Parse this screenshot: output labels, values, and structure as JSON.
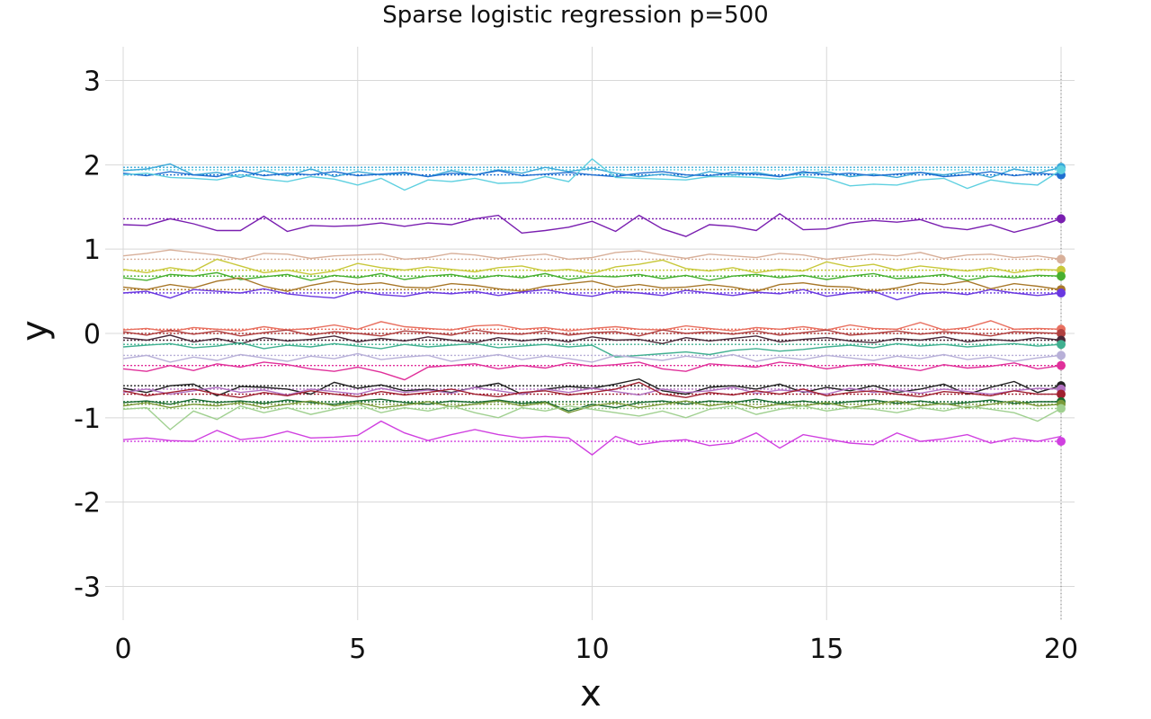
{
  "chart_data": {
    "type": "line",
    "title": "Sparse logistic regression p=500",
    "xlabel": "x",
    "ylabel": "y",
    "xlim": [
      0,
      20
    ],
    "ylim": [
      -3.4,
      3.4
    ],
    "x_ticks": [
      0,
      5,
      10,
      15,
      20
    ],
    "x_tick_labels": [
      "0",
      "5",
      "10",
      "15",
      "20"
    ],
    "y_ticks": [
      3,
      2,
      1,
      0,
      -1,
      -2,
      -3
    ],
    "y_tick_labels": [
      "3",
      "2",
      "1",
      "0",
      "-1",
      "-2",
      "-3"
    ],
    "grid": true,
    "legend": "none",
    "x": [
      0,
      0.5,
      1,
      1.5,
      2,
      2.5,
      3,
      3.5,
      4,
      4.5,
      5,
      5.5,
      6,
      6.5,
      7,
      7.5,
      8,
      8.5,
      9,
      9.5,
      10,
      10.5,
      11,
      11.5,
      12,
      12.5,
      13,
      13.5,
      14,
      14.5,
      15,
      15.5,
      16,
      16.5,
      17,
      17.5,
      18,
      18.5,
      19,
      19.5,
      20
    ],
    "series": [
      {
        "color": "#3aa8d8",
        "target": 1.97,
        "values": [
          1.93,
          1.95,
          2.01,
          1.88,
          1.91,
          1.85,
          1.93,
          1.87,
          1.95,
          1.86,
          1.92,
          1.88,
          1.9,
          1.86,
          1.93,
          1.88,
          1.94,
          1.9,
          1.97,
          1.92,
          1.96,
          1.9,
          1.86,
          1.89,
          1.85,
          1.92,
          1.88,
          1.91,
          1.86,
          1.9,
          1.92,
          1.86,
          1.89,
          1.85,
          1.91,
          1.88,
          1.92,
          1.85,
          1.95,
          1.9,
          1.97
        ]
      },
      {
        "color": "#1f6fd0",
        "target": 1.88,
        "values": [
          1.9,
          1.87,
          1.92,
          1.88,
          1.86,
          1.93,
          1.87,
          1.9,
          1.88,
          1.92,
          1.87,
          1.89,
          1.91,
          1.86,
          1.9,
          1.88,
          1.93,
          1.87,
          1.89,
          1.91,
          1.88,
          1.86,
          1.9,
          1.92,
          1.88,
          1.87,
          1.91,
          1.89,
          1.86,
          1.92,
          1.88,
          1.9,
          1.87,
          1.89,
          1.91,
          1.86,
          1.88,
          1.92,
          1.87,
          1.9,
          1.88
        ]
      },
      {
        "color": "#5fd0e0",
        "target": 1.94,
        "values": [
          1.88,
          1.9,
          1.85,
          1.84,
          1.82,
          1.88,
          1.83,
          1.8,
          1.86,
          1.83,
          1.76,
          1.84,
          1.7,
          1.82,
          1.8,
          1.84,
          1.78,
          1.79,
          1.86,
          1.8,
          2.07,
          1.85,
          1.84,
          1.83,
          1.82,
          1.86,
          1.86,
          1.85,
          1.83,
          1.86,
          1.84,
          1.75,
          1.77,
          1.76,
          1.82,
          1.84,
          1.72,
          1.82,
          1.78,
          1.76,
          1.94
        ]
      },
      {
        "color": "#7a1fb0",
        "target": 1.36,
        "values": [
          1.29,
          1.28,
          1.36,
          1.3,
          1.22,
          1.22,
          1.39,
          1.21,
          1.28,
          1.27,
          1.28,
          1.31,
          1.27,
          1.31,
          1.29,
          1.36,
          1.4,
          1.19,
          1.22,
          1.26,
          1.33,
          1.21,
          1.4,
          1.24,
          1.15,
          1.29,
          1.27,
          1.22,
          1.42,
          1.23,
          1.24,
          1.31,
          1.34,
          1.32,
          1.35,
          1.26,
          1.23,
          1.29,
          1.2,
          1.27,
          1.36
        ]
      },
      {
        "color": "#d8b09a",
        "target": 0.88,
        "values": [
          0.92,
          0.95,
          0.99,
          0.96,
          0.93,
          0.88,
          0.95,
          0.94,
          0.89,
          0.92,
          0.93,
          0.94,
          0.88,
          0.9,
          0.95,
          0.93,
          0.89,
          0.92,
          0.94,
          0.88,
          0.9,
          0.96,
          0.98,
          0.93,
          0.89,
          0.94,
          0.92,
          0.9,
          0.95,
          0.93,
          0.88,
          0.91,
          0.94,
          0.92,
          0.96,
          0.89,
          0.93,
          0.94,
          0.9,
          0.92,
          0.88
        ]
      },
      {
        "color": "#c8c83a",
        "target": 0.75,
        "values": [
          0.76,
          0.72,
          0.78,
          0.74,
          0.88,
          0.8,
          0.72,
          0.75,
          0.7,
          0.74,
          0.83,
          0.78,
          0.75,
          0.79,
          0.76,
          0.73,
          0.78,
          0.8,
          0.74,
          0.76,
          0.71,
          0.79,
          0.82,
          0.87,
          0.77,
          0.74,
          0.78,
          0.72,
          0.76,
          0.74,
          0.85,
          0.79,
          0.82,
          0.75,
          0.8,
          0.77,
          0.74,
          0.78,
          0.72,
          0.76,
          0.75
        ]
      },
      {
        "color": "#48b030",
        "target": 0.68,
        "values": [
          0.66,
          0.63,
          0.7,
          0.68,
          0.72,
          0.64,
          0.67,
          0.7,
          0.63,
          0.69,
          0.66,
          0.71,
          0.64,
          0.68,
          0.7,
          0.65,
          0.69,
          0.66,
          0.71,
          0.64,
          0.68,
          0.67,
          0.7,
          0.65,
          0.69,
          0.63,
          0.68,
          0.7,
          0.66,
          0.69,
          0.64,
          0.68,
          0.71,
          0.65,
          0.67,
          0.7,
          0.63,
          0.68,
          0.66,
          0.69,
          0.68
        ]
      },
      {
        "color": "#a8782a",
        "target": 0.52,
        "values": [
          0.55,
          0.52,
          0.58,
          0.54,
          0.62,
          0.66,
          0.56,
          0.5,
          0.57,
          0.62,
          0.58,
          0.6,
          0.55,
          0.54,
          0.59,
          0.57,
          0.53,
          0.5,
          0.56,
          0.59,
          0.62,
          0.55,
          0.58,
          0.54,
          0.55,
          0.58,
          0.55,
          0.5,
          0.58,
          0.6,
          0.56,
          0.55,
          0.5,
          0.54,
          0.6,
          0.58,
          0.62,
          0.53,
          0.59,
          0.56,
          0.52
        ]
      },
      {
        "color": "#6a38e0",
        "target": 0.48,
        "values": [
          0.48,
          0.5,
          0.42,
          0.52,
          0.5,
          0.48,
          0.53,
          0.47,
          0.44,
          0.42,
          0.5,
          0.46,
          0.44,
          0.49,
          0.47,
          0.5,
          0.45,
          0.49,
          0.52,
          0.47,
          0.44,
          0.5,
          0.48,
          0.45,
          0.51,
          0.48,
          0.45,
          0.49,
          0.47,
          0.52,
          0.44,
          0.48,
          0.5,
          0.4,
          0.47,
          0.49,
          0.46,
          0.52,
          0.48,
          0.45,
          0.48
        ]
      },
      {
        "color": "#e87060",
        "target": 0.05,
        "values": [
          0.04,
          0.06,
          0.02,
          0.07,
          0.05,
          0.03,
          0.08,
          0.04,
          0.06,
          0.1,
          0.05,
          0.14,
          0.08,
          0.06,
          0.04,
          0.09,
          0.1,
          0.05,
          0.07,
          0.03,
          0.06,
          0.08,
          0.05,
          0.04,
          0.09,
          0.06,
          0.03,
          0.07,
          0.05,
          0.08,
          0.04,
          0.1,
          0.06,
          0.05,
          0.13,
          0.04,
          0.07,
          0.15,
          0.05,
          0.06,
          0.05
        ]
      },
      {
        "color": "#b04040",
        "target": 0.0,
        "values": [
          0.02,
          -0.02,
          0.04,
          -0.01,
          0.03,
          -0.03,
          0.01,
          0.04,
          -0.02,
          0.02,
          0.0,
          -0.03,
          0.03,
          0.01,
          -0.02,
          0.04,
          0.0,
          -0.01,
          0.03,
          -0.02,
          0.01,
          0.02,
          -0.03,
          0.04,
          0.0,
          0.02,
          -0.01,
          0.03,
          -0.02,
          0.01,
          0.04,
          -0.02,
          0.0,
          0.03,
          -0.01,
          0.02,
          0.0,
          -0.03,
          0.02,
          0.01,
          0.0
        ]
      },
      {
        "color": "#4a2838",
        "target": -0.08,
        "values": [
          -0.05,
          -0.08,
          -0.02,
          -0.1,
          -0.06,
          -0.12,
          -0.05,
          -0.09,
          -0.07,
          -0.03,
          -0.1,
          -0.06,
          -0.09,
          -0.04,
          -0.08,
          -0.11,
          -0.05,
          -0.09,
          -0.06,
          -0.1,
          -0.04,
          -0.08,
          -0.07,
          -0.12,
          -0.05,
          -0.09,
          -0.06,
          -0.03,
          -0.1,
          -0.07,
          -0.05,
          -0.09,
          -0.11,
          -0.06,
          -0.08,
          -0.04,
          -0.1,
          -0.07,
          -0.09,
          -0.05,
          -0.08
        ]
      },
      {
        "color": "#40b090",
        "target": -0.13,
        "values": [
          -0.16,
          -0.14,
          -0.12,
          -0.17,
          -0.15,
          -0.11,
          -0.18,
          -0.14,
          -0.16,
          -0.12,
          -0.15,
          -0.18,
          -0.13,
          -0.16,
          -0.14,
          -0.12,
          -0.17,
          -0.15,
          -0.13,
          -0.16,
          -0.14,
          -0.28,
          -0.26,
          -0.24,
          -0.22,
          -0.25,
          -0.2,
          -0.18,
          -0.21,
          -0.19,
          -0.16,
          -0.14,
          -0.17,
          -0.12,
          -0.15,
          -0.13,
          -0.16,
          -0.14,
          -0.12,
          -0.15,
          -0.13
        ]
      },
      {
        "color": "#b8b0d8",
        "target": -0.26,
        "values": [
          -0.3,
          -0.26,
          -0.34,
          -0.28,
          -0.32,
          -0.25,
          -0.29,
          -0.33,
          -0.27,
          -0.3,
          -0.24,
          -0.31,
          -0.28,
          -0.26,
          -0.33,
          -0.29,
          -0.25,
          -0.31,
          -0.27,
          -0.3,
          -0.34,
          -0.26,
          -0.29,
          -0.32,
          -0.27,
          -0.3,
          -0.25,
          -0.33,
          -0.28,
          -0.31,
          -0.26,
          -0.29,
          -0.32,
          -0.27,
          -0.3,
          -0.25,
          -0.31,
          -0.28,
          -0.33,
          -0.29,
          -0.26
        ]
      },
      {
        "color": "#e0309a",
        "target": -0.38,
        "values": [
          -0.42,
          -0.45,
          -0.38,
          -0.44,
          -0.36,
          -0.4,
          -0.34,
          -0.37,
          -0.42,
          -0.45,
          -0.4,
          -0.46,
          -0.55,
          -0.4,
          -0.38,
          -0.36,
          -0.42,
          -0.38,
          -0.41,
          -0.35,
          -0.39,
          -0.37,
          -0.34,
          -0.42,
          -0.45,
          -0.36,
          -0.38,
          -0.4,
          -0.34,
          -0.37,
          -0.42,
          -0.38,
          -0.36,
          -0.4,
          -0.44,
          -0.37,
          -0.41,
          -0.39,
          -0.35,
          -0.42,
          -0.38
        ]
      },
      {
        "color": "#222222",
        "target": -0.62,
        "values": [
          -0.65,
          -0.7,
          -0.62,
          -0.6,
          -0.74,
          -0.63,
          -0.64,
          -0.66,
          -0.72,
          -0.58,
          -0.65,
          -0.61,
          -0.68,
          -0.66,
          -0.7,
          -0.64,
          -0.59,
          -0.72,
          -0.66,
          -0.63,
          -0.65,
          -0.6,
          -0.54,
          -0.68,
          -0.72,
          -0.64,
          -0.62,
          -0.66,
          -0.6,
          -0.7,
          -0.64,
          -0.68,
          -0.62,
          -0.7,
          -0.66,
          -0.6,
          -0.72,
          -0.64,
          -0.57,
          -0.7,
          -0.62
        ]
      },
      {
        "color": "#b070c0",
        "target": -0.66,
        "values": [
          -0.7,
          -0.66,
          -0.72,
          -0.68,
          -0.64,
          -0.7,
          -0.67,
          -0.73,
          -0.66,
          -0.69,
          -0.72,
          -0.65,
          -0.7,
          -0.67,
          -0.71,
          -0.64,
          -0.68,
          -0.72,
          -0.66,
          -0.7,
          -0.65,
          -0.69,
          -0.73,
          -0.66,
          -0.7,
          -0.68,
          -0.64,
          -0.71,
          -0.67,
          -0.69,
          -0.72,
          -0.65,
          -0.7,
          -0.67,
          -0.71,
          -0.66,
          -0.69,
          -0.72,
          -0.68,
          -0.65,
          -0.66
        ]
      },
      {
        "color": "#a02030",
        "target": -0.72,
        "values": [
          -0.68,
          -0.74,
          -0.7,
          -0.66,
          -0.72,
          -0.76,
          -0.7,
          -0.74,
          -0.68,
          -0.72,
          -0.75,
          -0.69,
          -0.73,
          -0.7,
          -0.66,
          -0.72,
          -0.75,
          -0.7,
          -0.68,
          -0.73,
          -0.7,
          -0.66,
          -0.58,
          -0.72,
          -0.76,
          -0.7,
          -0.73,
          -0.68,
          -0.72,
          -0.66,
          -0.74,
          -0.7,
          -0.68,
          -0.72,
          -0.75,
          -0.69,
          -0.71,
          -0.74,
          -0.68,
          -0.72,
          -0.72
        ]
      },
      {
        "color": "#1a6a30",
        "target": -0.81,
        "values": [
          -0.82,
          -0.8,
          -0.84,
          -0.78,
          -0.82,
          -0.8,
          -0.83,
          -0.79,
          -0.82,
          -0.84,
          -0.8,
          -0.78,
          -0.82,
          -0.84,
          -0.8,
          -0.82,
          -0.79,
          -0.83,
          -0.81,
          -0.92,
          -0.84,
          -0.88,
          -0.82,
          -0.8,
          -0.84,
          -0.8,
          -0.82,
          -0.78,
          -0.83,
          -0.8,
          -0.84,
          -0.81,
          -0.79,
          -0.83,
          -0.8,
          -0.84,
          -0.82,
          -0.79,
          -0.83,
          -0.81,
          -0.81
        ]
      },
      {
        "color": "#7a9a3a",
        "target": -0.84,
        "values": [
          -0.86,
          -0.82,
          -0.88,
          -0.84,
          -0.86,
          -0.82,
          -0.88,
          -0.84,
          -0.8,
          -0.86,
          -0.82,
          -0.88,
          -0.85,
          -0.81,
          -0.87,
          -0.84,
          -0.8,
          -0.86,
          -0.82,
          -0.94,
          -0.86,
          -0.82,
          -0.88,
          -0.84,
          -0.8,
          -0.86,
          -0.82,
          -0.88,
          -0.84,
          -0.86,
          -0.82,
          -0.88,
          -0.84,
          -0.8,
          -0.86,
          -0.83,
          -0.88,
          -0.84,
          -0.8,
          -0.86,
          -0.84
        ]
      },
      {
        "color": "#a0d090",
        "target": -0.89,
        "values": [
          -0.9,
          -0.88,
          -1.14,
          -0.92,
          -1.02,
          -0.86,
          -0.94,
          -0.88,
          -0.96,
          -0.9,
          -0.84,
          -0.94,
          -0.88,
          -0.92,
          -0.86,
          -0.94,
          -1.0,
          -0.88,
          -0.92,
          -0.86,
          -0.9,
          -0.94,
          -0.98,
          -0.92,
          -1.0,
          -0.9,
          -0.86,
          -0.96,
          -0.9,
          -0.86,
          -0.92,
          -0.88,
          -0.9,
          -0.94,
          -0.88,
          -0.92,
          -0.86,
          -0.9,
          -0.94,
          -1.04,
          -0.89
        ]
      },
      {
        "color": "#d040e0",
        "target": -1.28,
        "values": [
          -1.26,
          -1.24,
          -1.27,
          -1.28,
          -1.15,
          -1.26,
          -1.23,
          -1.16,
          -1.24,
          -1.23,
          -1.21,
          -1.04,
          -1.18,
          -1.27,
          -1.2,
          -1.14,
          -1.2,
          -1.24,
          -1.22,
          -1.24,
          -1.44,
          -1.22,
          -1.32,
          -1.28,
          -1.26,
          -1.33,
          -1.3,
          -1.18,
          -1.36,
          -1.2,
          -1.25,
          -1.3,
          -1.32,
          -1.18,
          -1.28,
          -1.25,
          -1.2,
          -1.3,
          -1.24,
          -1.28,
          -1.22
        ]
      }
    ]
  }
}
